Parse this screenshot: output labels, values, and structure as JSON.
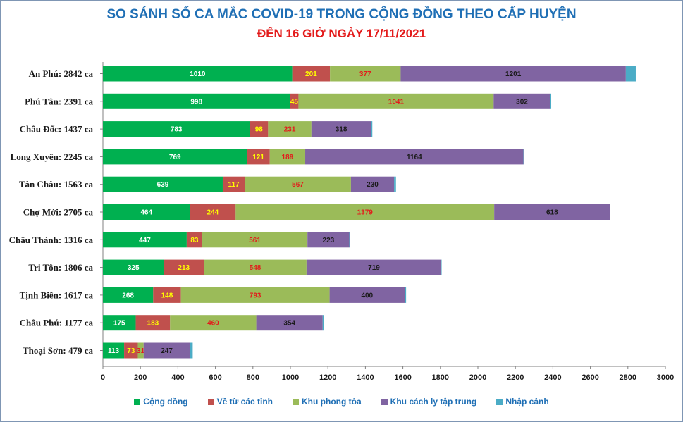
{
  "title": "SO SÁNH SỐ CA MẮC COVID-19 TRONG CỘNG ĐỒNG THEO CẤP HUYỆN",
  "subtitle": "ĐẾN 16 GIỜ NGÀY 17/11/2021",
  "chart_data": {
    "type": "bar",
    "orientation": "horizontal",
    "stacked": true,
    "title": "SO SÁNH SỐ CA MẮC COVID-19 TRONG CỘNG ĐỒNG THEO CẤP HUYỆN",
    "subtitle": "ĐẾN 16 GIỜ NGÀY 17/11/2021",
    "categories": [
      "An Phú: 2842 ca",
      "Phú Tân: 2391 ca",
      "Châu Đốc: 1437 ca",
      "Long Xuyên: 2245 ca",
      "Tân Châu: 1563 ca",
      "Chợ Mới: 2705 ca",
      "Châu Thành: 1316 ca",
      "Tri Tôn:  1806 ca",
      "Tịnh Biên: 1617 ca",
      "Châu Phú: 1177 ca",
      "Thoại  Sơn: 479 ca"
    ],
    "series": [
      {
        "name": "Cộng đồng",
        "color": "#00b050",
        "label_color": "#ffffff",
        "values": [
          1010,
          998,
          783,
          769,
          639,
          464,
          447,
          325,
          268,
          175,
          113
        ]
      },
      {
        "name": "Về từ các tỉnh",
        "color": "#c0504d",
        "label_color": "#ffff00",
        "values": [
          201,
          45,
          98,
          121,
          117,
          244,
          83,
          213,
          148,
          183,
          73
        ]
      },
      {
        "name": "Khu phong tỏa",
        "color": "#9bbb59",
        "label_color": "#e31b1b",
        "values": [
          377,
          1041,
          231,
          189,
          567,
          1379,
          561,
          548,
          793,
          460,
          31
        ]
      },
      {
        "name": "Khu cách ly tập trung",
        "color": "#8064a2",
        "label_color": "#1a1a1a",
        "values": [
          1201,
          302,
          318,
          1164,
          230,
          618,
          223,
          719,
          400,
          354,
          247
        ]
      },
      {
        "name": "Nhập cảnh",
        "color": "#4bacc6",
        "label_color": "#1a1a1a",
        "values": [
          53,
          5,
          7,
          2,
          10,
          0,
          2,
          1,
          8,
          5,
          15
        ]
      }
    ],
    "show_value_labels": [
      true,
      true,
      true,
      true,
      false
    ],
    "xlim": [
      0,
      3000
    ],
    "xticks": [
      0,
      200,
      400,
      600,
      800,
      1000,
      1200,
      1400,
      1600,
      1800,
      2000,
      2200,
      2400,
      2600,
      2800,
      3000
    ],
    "grid": false,
    "legend_position": "bottom"
  }
}
